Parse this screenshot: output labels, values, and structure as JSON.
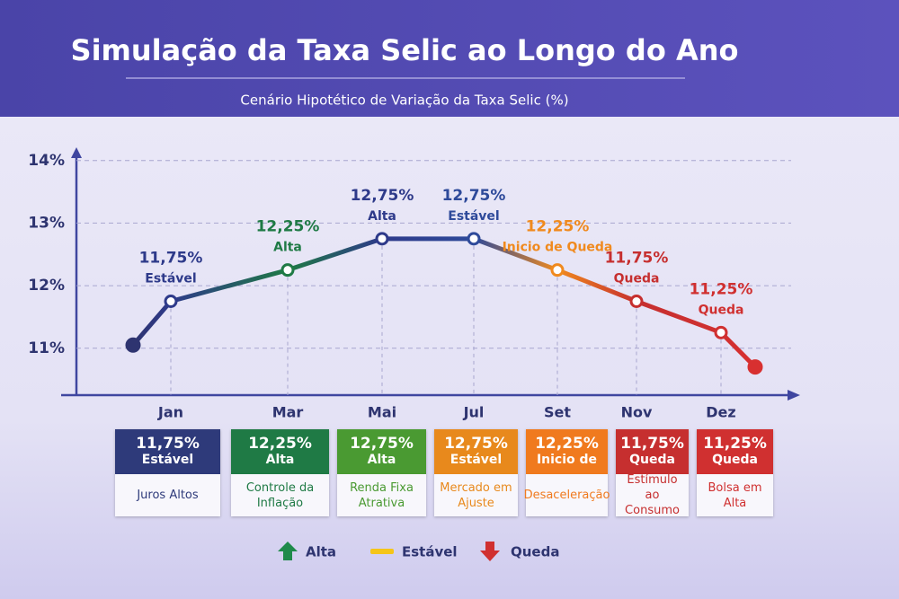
{
  "chart_data": {
    "type": "line",
    "title": "Simulação da Taxa Selic ao Longo do Ano",
    "subtitle": "Cenário Hipotético de Variação da Taxa Selic (%)",
    "categories": [
      null,
      "Jan",
      "Mar",
      "Mai",
      "Jul",
      "Set",
      "Nov",
      "Dez",
      null
    ],
    "values": [
      11.05,
      11.75,
      12.25,
      12.75,
      12.75,
      12.25,
      11.75,
      11.25,
      10.7
    ],
    "value_labels": [
      null,
      "11,75%",
      "12,25%",
      "12,75%",
      "12,75%",
      "12,25%",
      "11,75%",
      "11,25%",
      null
    ],
    "point_labels": [
      null,
      "Estável",
      "Alta",
      "Alta",
      "Estável",
      "Inicio de Queda",
      "Queda",
      "Queda",
      null
    ],
    "colors": [
      "#2e3470",
      "#2e3a8a",
      "#1f7a45",
      "#2e3a8a",
      "#2e4a9a",
      "#f08a1e",
      "#c62f2f",
      "#d03030",
      "#d83030"
    ],
    "ylim": [
      10.25,
      14.1
    ],
    "yticks": [
      {
        "value": 11,
        "label": "11%"
      },
      {
        "value": 12,
        "label": "12%"
      },
      {
        "value": 13,
        "label": "13%"
      },
      {
        "value": 14,
        "label": "14%"
      }
    ],
    "grid": true
  },
  "cards": [
    {
      "status": "Estável",
      "description": "Juros Altos",
      "color": "#2e3a7a"
    },
    {
      "status": "Alta",
      "description": "Controle da Inflação",
      "color": "#1f7a45"
    },
    {
      "status": "Alta",
      "description": "Renda Fixa Atrativa",
      "color": "#4a9a32"
    },
    {
      "status": "Estável",
      "description": "Mercado em Ajuste",
      "color": "#e8891c"
    },
    {
      "status": "Inicio de",
      "description": "Desaceleração",
      "color": "#f07a1e"
    },
    {
      "status": "Queda",
      "description": "Estímulo ao Consumo",
      "color": "#c62f2f"
    },
    {
      "status": "Queda",
      "description": "Bolsa em Alta",
      "color": "#d03030"
    }
  ],
  "legend": [
    {
      "label": "Alta",
      "color": "#1f8a4a"
    },
    {
      "label": "Estável",
      "color": "#f5c518"
    },
    {
      "label": "Queda",
      "color": "#d03030"
    }
  ]
}
